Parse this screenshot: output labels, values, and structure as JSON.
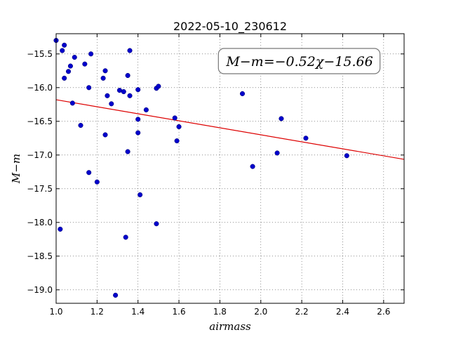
{
  "chart_data": {
    "type": "scatter",
    "title": "2022-05-10_230612",
    "xlabel": "airmass",
    "ylabel": "M−m",
    "xlim": [
      1.0,
      2.7
    ],
    "ylim": [
      -19.2,
      -15.2
    ],
    "x_ticks": [
      1.0,
      1.2,
      1.4,
      1.6,
      1.8,
      2.0,
      2.2,
      2.4,
      2.6
    ],
    "y_ticks": [
      -15.5,
      -16.0,
      -16.5,
      -17.0,
      -17.5,
      -18.0,
      -18.5,
      -19.0
    ],
    "grid": true,
    "annotation": {
      "text": "M−m=−0.52χ−15.66",
      "placement": "top-right"
    },
    "fit_line": {
      "slope": -0.52,
      "intercept": -15.66,
      "color": "#dd0000"
    },
    "point_color": "#0000cc",
    "points": [
      {
        "x": 1.0,
        "y": -15.3
      },
      {
        "x": 1.02,
        "y": -18.1
      },
      {
        "x": 1.03,
        "y": -15.45
      },
      {
        "x": 1.04,
        "y": -15.37
      },
      {
        "x": 1.04,
        "y": -15.86
      },
      {
        "x": 1.06,
        "y": -15.76
      },
      {
        "x": 1.07,
        "y": -15.68
      },
      {
        "x": 1.08,
        "y": -16.23
      },
      {
        "x": 1.09,
        "y": -15.55
      },
      {
        "x": 1.12,
        "y": -16.56
      },
      {
        "x": 1.14,
        "y": -15.65
      },
      {
        "x": 1.16,
        "y": -16.0
      },
      {
        "x": 1.16,
        "y": -17.26
      },
      {
        "x": 1.17,
        "y": -15.5
      },
      {
        "x": 1.2,
        "y": -17.4
      },
      {
        "x": 1.23,
        "y": -15.86
      },
      {
        "x": 1.24,
        "y": -15.75
      },
      {
        "x": 1.24,
        "y": -16.7
      },
      {
        "x": 1.25,
        "y": -16.12
      },
      {
        "x": 1.27,
        "y": -16.24
      },
      {
        "x": 1.29,
        "y": -19.08
      },
      {
        "x": 1.31,
        "y": -16.04
      },
      {
        "x": 1.33,
        "y": -16.06
      },
      {
        "x": 1.34,
        "y": -18.22
      },
      {
        "x": 1.35,
        "y": -15.82
      },
      {
        "x": 1.35,
        "y": -16.95
      },
      {
        "x": 1.36,
        "y": -15.45
      },
      {
        "x": 1.36,
        "y": -16.12
      },
      {
        "x": 1.4,
        "y": -16.03
      },
      {
        "x": 1.4,
        "y": -16.47
      },
      {
        "x": 1.4,
        "y": -16.67
      },
      {
        "x": 1.41,
        "y": -17.59
      },
      {
        "x": 1.44,
        "y": -16.33
      },
      {
        "x": 1.49,
        "y": -16.01
      },
      {
        "x": 1.49,
        "y": -18.02
      },
      {
        "x": 1.5,
        "y": -15.98
      },
      {
        "x": 1.58,
        "y": -16.45
      },
      {
        "x": 1.59,
        "y": -16.79
      },
      {
        "x": 1.6,
        "y": -16.58
      },
      {
        "x": 1.91,
        "y": -16.09
      },
      {
        "x": 1.96,
        "y": -17.17
      },
      {
        "x": 2.08,
        "y": -16.97
      },
      {
        "x": 2.1,
        "y": -16.46
      },
      {
        "x": 2.22,
        "y": -16.75
      },
      {
        "x": 2.42,
        "y": -17.01
      }
    ]
  }
}
